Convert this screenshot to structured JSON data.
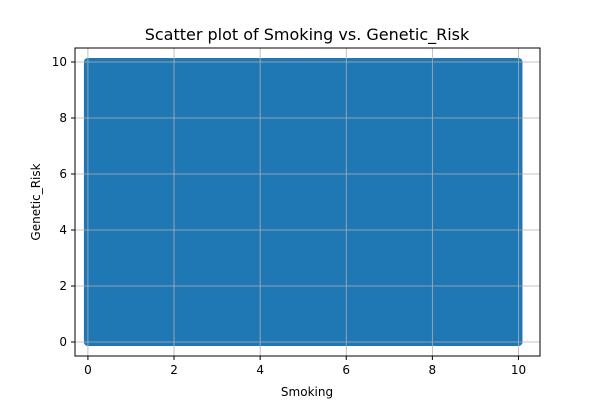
{
  "chart_data": {
    "type": "scatter",
    "title": "Scatter plot of Smoking vs. Genetic_Risk",
    "xlabel": "Smoking",
    "ylabel": "Genetic_Risk",
    "xlim": [
      -0.3,
      10.5
    ],
    "ylim": [
      -0.5,
      10.5
    ],
    "xticks": [
      0,
      2,
      4,
      6,
      8,
      10
    ],
    "yticks": [
      0,
      2,
      4,
      6,
      8,
      10
    ],
    "x_tick_labels": [
      "0",
      "2",
      "4",
      "6",
      "8",
      "10"
    ],
    "y_tick_labels": [
      "0",
      "2",
      "4",
      "6",
      "8",
      "10"
    ],
    "grid": true,
    "point_color": "#1f77b4",
    "point_region": {
      "x": [
        0,
        10
      ],
      "y": [
        0,
        10
      ]
    },
    "note_values": "Points densely cover the full range 0–10 on both axes, forming a solid block."
  }
}
